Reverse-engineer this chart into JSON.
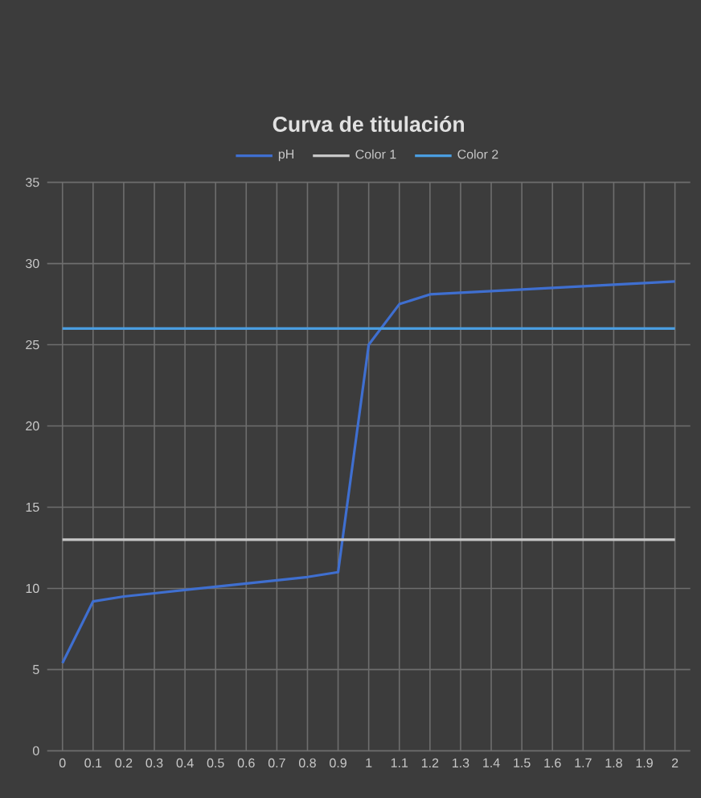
{
  "chart_data": {
    "type": "line",
    "title": "Curva de titulación",
    "categories": [
      "0",
      "0.1",
      "0.2",
      "0.3",
      "0.4",
      "0.5",
      "0.6",
      "0.7",
      "0.8",
      "0.9",
      "1",
      "1.1",
      "1.2",
      "1.3",
      "1.4",
      "1.5",
      "1.6",
      "1.7",
      "1.8",
      "1.9",
      "2"
    ],
    "series": [
      {
        "name": "pH",
        "color": "#3f6fd0",
        "values": [
          5.4,
          9.2,
          9.5,
          9.7,
          9.9,
          10.1,
          10.3,
          10.5,
          10.7,
          11,
          25,
          27.5,
          28.1,
          28.2,
          28.3,
          28.4,
          28.5,
          28.6,
          28.7,
          28.8,
          28.9
        ]
      },
      {
        "name": "Color 1",
        "color": "#c8c8c8",
        "values": [
          13,
          13,
          13,
          13,
          13,
          13,
          13,
          13,
          13,
          13,
          13,
          13,
          13,
          13,
          13,
          13,
          13,
          13,
          13,
          13,
          13
        ]
      },
      {
        "name": "Color 2",
        "color": "#4a9de0",
        "values": [
          26,
          26,
          26,
          26,
          26,
          26,
          26,
          26,
          26,
          26,
          26,
          26,
          26,
          26,
          26,
          26,
          26,
          26,
          26,
          26,
          26
        ]
      }
    ],
    "ylim": [
      0,
      35
    ],
    "yticks": [
      0,
      5,
      10,
      15,
      20,
      25,
      30,
      35
    ],
    "grid": true,
    "legend": "top",
    "marker": "none",
    "line_style": "solid"
  }
}
